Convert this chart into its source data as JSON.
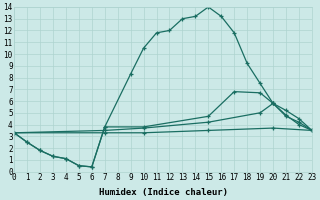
{
  "xlabel": "Humidex (Indice chaleur)",
  "xlim": [
    0,
    23
  ],
  "ylim": [
    0,
    14
  ],
  "xticks": [
    0,
    1,
    2,
    3,
    4,
    5,
    6,
    7,
    8,
    9,
    10,
    11,
    12,
    13,
    14,
    15,
    16,
    17,
    18,
    19,
    20,
    21,
    22,
    23
  ],
  "yticks": [
    0,
    1,
    2,
    3,
    4,
    5,
    6,
    7,
    8,
    9,
    10,
    11,
    12,
    13,
    14
  ],
  "bg_color": "#cce9e7",
  "grid_color": "#aed4d0",
  "line_color": "#1a6e62",
  "line1_x": [
    0,
    1,
    2,
    3,
    4,
    5,
    6,
    7,
    9,
    10,
    11,
    12,
    13,
    14,
    15,
    16,
    17,
    18,
    19,
    20,
    21,
    22,
    23
  ],
  "line1_y": [
    3.3,
    2.5,
    1.8,
    1.3,
    1.1,
    0.5,
    0.4,
    3.8,
    8.3,
    10.5,
    11.8,
    12.0,
    13.0,
    13.2,
    14.0,
    13.2,
    11.8,
    9.2,
    7.5,
    5.8,
    4.8,
    4.0,
    3.5
  ],
  "line2_x": [
    0,
    1,
    2,
    3,
    4,
    5,
    6,
    7,
    10,
    15,
    17,
    19,
    20,
    21,
    22,
    23
  ],
  "line2_y": [
    3.3,
    2.5,
    1.8,
    1.3,
    1.1,
    0.5,
    0.4,
    3.8,
    3.8,
    4.7,
    6.8,
    6.7,
    5.8,
    4.7,
    4.2,
    3.5
  ],
  "line3_x": [
    0,
    7,
    10,
    15,
    19,
    20,
    21,
    22,
    23
  ],
  "line3_y": [
    3.3,
    3.5,
    3.7,
    4.2,
    5.0,
    5.8,
    5.2,
    4.5,
    3.5
  ],
  "line4_x": [
    0,
    7,
    10,
    15,
    20,
    23
  ],
  "line4_y": [
    3.3,
    3.3,
    3.3,
    3.5,
    3.7,
    3.5
  ],
  "tick_fontsize": 5.5,
  "xlabel_fontsize": 6.5
}
